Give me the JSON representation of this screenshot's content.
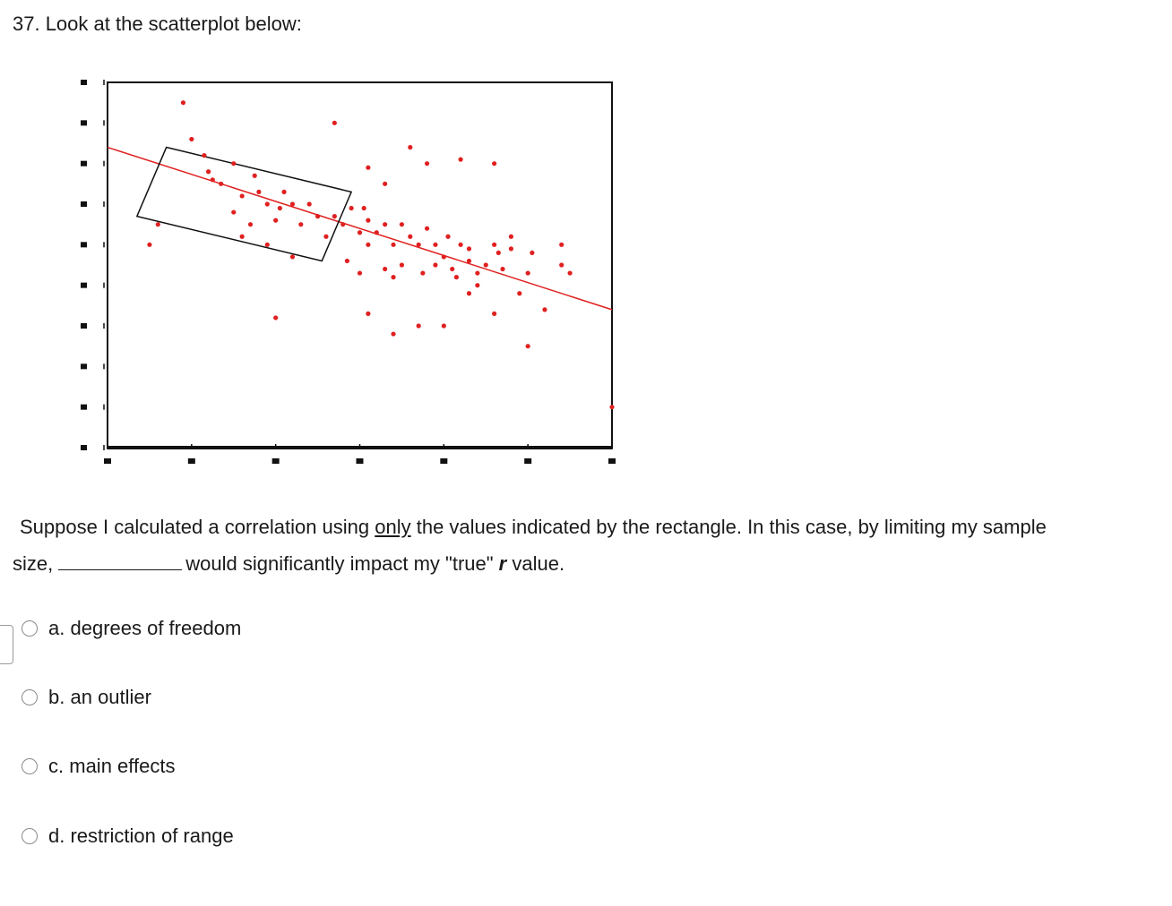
{
  "question": {
    "title": "37. Look at the scatterplot below:",
    "stem": {
      "line1_a": "Suppose I calculated a correlation using ",
      "line1_only": "only",
      "line1_b": " the values indicated by the rectangle.  In this case, by limiting my sample",
      "line2_a": "size,",
      "line2_b": "would significantly impact my \"true\" ",
      "line2_r": "r",
      "line2_c": " value."
    }
  },
  "options": [
    {
      "letter": "a.",
      "text": "degrees of freedom"
    },
    {
      "letter": "b.",
      "text": "an outlier"
    },
    {
      "letter": "c.",
      "text": "main effects"
    },
    {
      "letter": "d.",
      "text": "restriction of range"
    }
  ],
  "chart_data": {
    "type": "scatter",
    "title": "",
    "xlabel": "",
    "ylabel": "",
    "xlim": [
      0,
      6
    ],
    "ylim": [
      0,
      9
    ],
    "grid": false,
    "colors": {
      "points": "#e02020",
      "trend": "#e02020",
      "rectangle": "#111111"
    },
    "points": [
      [
        0.9,
        8.5
      ],
      [
        1.0,
        7.6
      ],
      [
        1.15,
        7.2
      ],
      [
        1.2,
        6.8
      ],
      [
        1.25,
        6.6
      ],
      [
        1.35,
        6.5
      ],
      [
        1.5,
        7.0
      ],
      [
        1.6,
        6.2
      ],
      [
        1.75,
        6.7
      ],
      [
        1.8,
        6.3
      ],
      [
        1.9,
        6.0
      ],
      [
        2.0,
        5.6
      ],
      [
        2.05,
        5.9
      ],
      [
        2.1,
        6.3
      ],
      [
        2.2,
        6.0
      ],
      [
        2.3,
        5.5
      ],
      [
        2.4,
        6.0
      ],
      [
        2.5,
        5.7
      ],
      [
        2.6,
        5.2
      ],
      [
        2.7,
        5.7
      ],
      [
        2.8,
        5.5
      ],
      [
        2.9,
        5.9
      ],
      [
        3.0,
        5.3
      ],
      [
        3.05,
        5.9
      ],
      [
        3.1,
        5.6
      ],
      [
        3.2,
        5.3
      ],
      [
        3.3,
        5.5
      ],
      [
        3.4,
        5.0
      ],
      [
        3.5,
        5.5
      ],
      [
        3.6,
        5.2
      ],
      [
        3.7,
        5.0
      ],
      [
        3.8,
        5.4
      ],
      [
        3.9,
        5.0
      ],
      [
        4.0,
        4.7
      ],
      [
        4.05,
        5.2
      ],
      [
        4.1,
        4.4
      ],
      [
        4.2,
        5.0
      ],
      [
        4.3,
        4.6
      ],
      [
        4.4,
        4.0
      ],
      [
        4.5,
        4.5
      ],
      [
        4.6,
        5.0
      ],
      [
        4.7,
        4.4
      ],
      [
        4.8,
        4.9
      ],
      [
        4.9,
        3.8
      ],
      [
        5.0,
        4.3
      ],
      [
        5.05,
        4.8
      ],
      [
        2.0,
        3.2
      ],
      [
        3.1,
        3.3
      ],
      [
        3.4,
        2.8
      ],
      [
        3.7,
        3.0
      ],
      [
        4.0,
        3.0
      ],
      [
        4.6,
        3.3
      ],
      [
        3.1,
        6.9
      ],
      [
        2.7,
        8.0
      ],
      [
        3.3,
        6.5
      ],
      [
        3.6,
        7.4
      ],
      [
        3.8,
        7.0
      ],
      [
        4.2,
        7.1
      ],
      [
        4.6,
        7.0
      ],
      [
        5.2,
        3.4
      ],
      [
        5.5,
        4.3
      ],
      [
        5.4,
        4.5
      ],
      [
        5.4,
        5.0
      ],
      [
        4.3,
        3.8
      ],
      [
        5.0,
        2.5
      ],
      [
        3.4,
        4.2
      ],
      [
        2.85,
        4.6
      ],
      [
        0.6,
        5.5
      ],
      [
        0.5,
        5.0
      ],
      [
        1.6,
        5.2
      ],
      [
        1.7,
        5.5
      ],
      [
        1.5,
        5.8
      ],
      [
        2.2,
        4.7
      ],
      [
        1.9,
        5.0
      ],
      [
        3.0,
        4.3
      ],
      [
        3.1,
        5.0
      ],
      [
        3.3,
        4.4
      ],
      [
        3.5,
        4.5
      ],
      [
        3.75,
        4.3
      ],
      [
        3.9,
        4.5
      ],
      [
        4.15,
        4.2
      ],
      [
        4.3,
        4.9
      ],
      [
        4.4,
        4.3
      ],
      [
        4.65,
        4.8
      ],
      [
        4.8,
        5.2
      ],
      [
        6.0,
        1.0
      ]
    ],
    "trendline": {
      "x": [
        0,
        6
      ],
      "y": [
        7.4,
        3.4
      ]
    },
    "rectangle_corners": [
      [
        0.7,
        7.4
      ],
      [
        2.9,
        6.3
      ],
      [
        2.55,
        4.6
      ],
      [
        0.35,
        5.7
      ]
    ]
  }
}
